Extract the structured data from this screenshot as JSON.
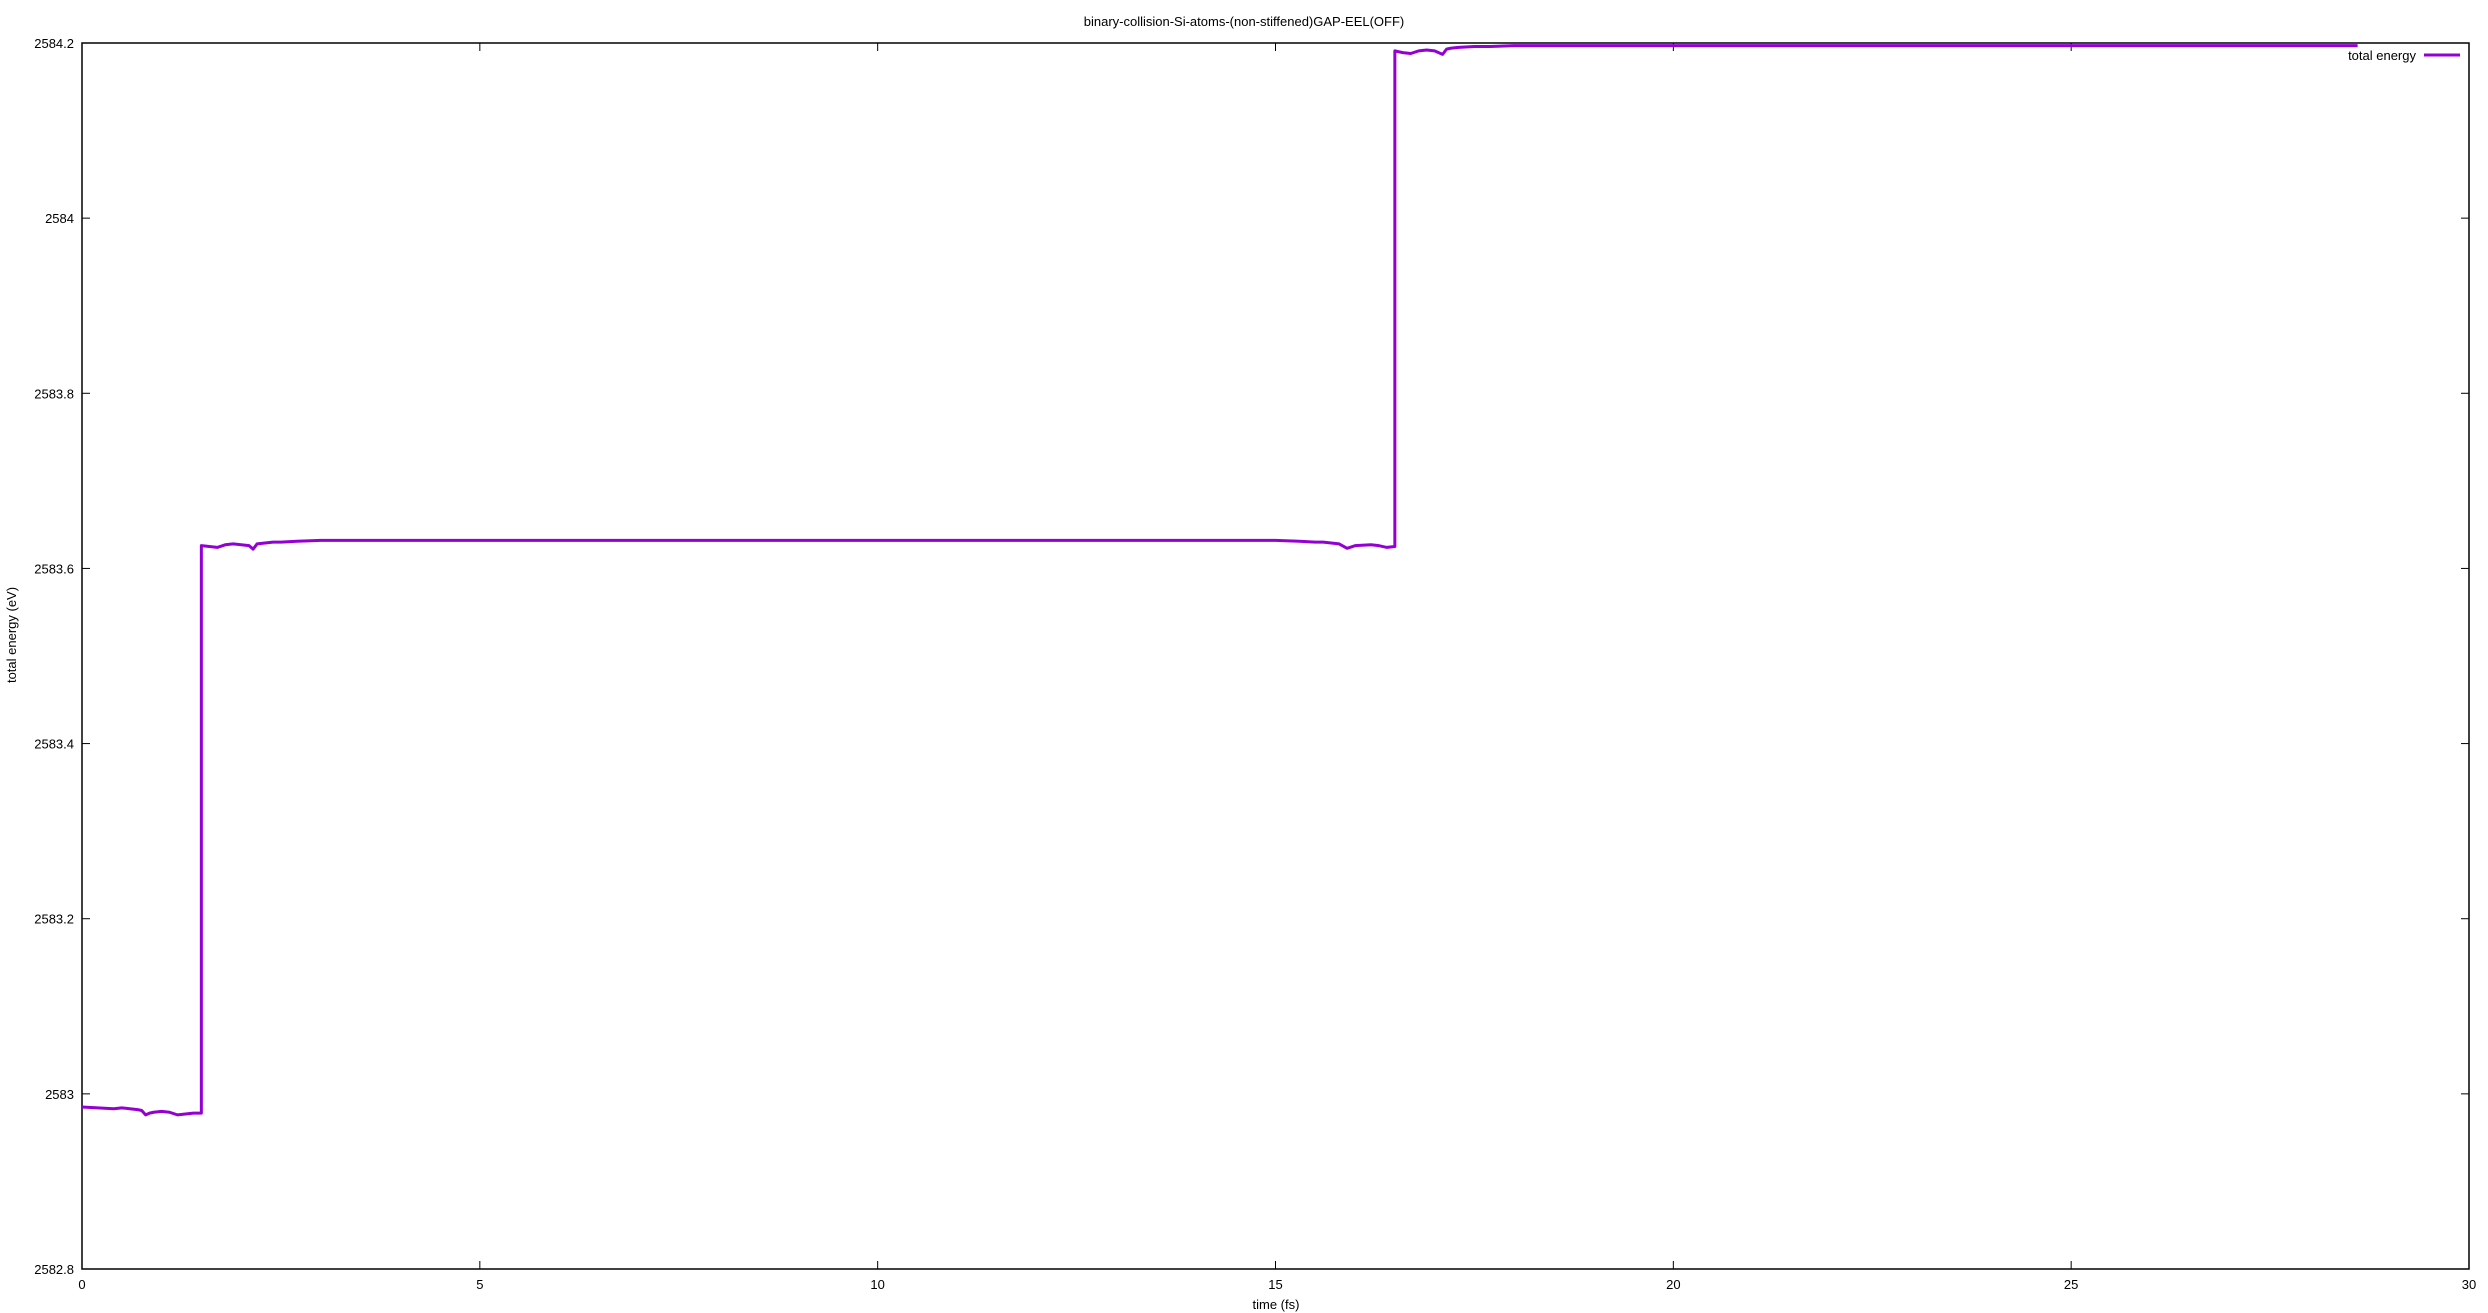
{
  "chart_data": {
    "type": "line",
    "title": "binary-collision-Si-atoms-(non-stiffened)GAP-EEL(OFF)",
    "xlabel": "time (fs)",
    "ylabel": "total energy (eV)",
    "xlim": [
      0,
      30
    ],
    "ylim": [
      2582.8,
      2584.2
    ],
    "x_ticks": [
      0,
      5,
      10,
      15,
      20,
      25,
      30
    ],
    "y_ticks": [
      2582.8,
      2583,
      2583.2,
      2583.4,
      2583.6,
      2583.8,
      2584,
      2584.2
    ],
    "x_tick_labels": [
      "0",
      "5",
      "10",
      "15",
      "20",
      "25",
      "30"
    ],
    "y_tick_labels": [
      "2582.8",
      "2583",
      "2583.2",
      "2583.4",
      "2583.6",
      "2583.8",
      "2584",
      "2584.2"
    ],
    "grid": false,
    "legend_position": "top-right",
    "series": [
      {
        "name": "total energy",
        "color": "#9400D3",
        "x": [
          0,
          0.2,
          0.4,
          0.5,
          0.6,
          0.7,
          0.75,
          0.8,
          0.85,
          0.9,
          1.0,
          1.1,
          1.2,
          1.3,
          1.4,
          1.5,
          1.5,
          1.6,
          1.7,
          1.8,
          1.9,
          2.0,
          2.1,
          2.15,
          2.2,
          2.3,
          2.4,
          2.5,
          2.7,
          3.0,
          3.5,
          5,
          10,
          14.5,
          15.0,
          15.3,
          15.5,
          15.6,
          15.7,
          15.8,
          15.9,
          16.0,
          16.2,
          16.3,
          16.4,
          16.5,
          16.5,
          16.6,
          16.7,
          16.8,
          16.9,
          17.0,
          17.1,
          17.15,
          17.2,
          17.3,
          17.5,
          17.7,
          18.0,
          20,
          25,
          28.6
        ],
        "values": [
          2582.985,
          2582.984,
          2582.983,
          2582.984,
          2582.983,
          2582.982,
          2582.981,
          2582.976,
          2582.978,
          2582.979,
          2582.98,
          2582.979,
          2582.976,
          2582.977,
          2582.978,
          2582.978,
          2583.626,
          2583.625,
          2583.624,
          2583.627,
          2583.628,
          2583.627,
          2583.626,
          2583.622,
          2583.628,
          2583.629,
          2583.63,
          2583.63,
          2583.631,
          2583.632,
          2583.632,
          2583.632,
          2583.632,
          2583.632,
          2583.632,
          2583.631,
          2583.63,
          2583.63,
          2583.629,
          2583.628,
          2583.623,
          2583.626,
          2583.627,
          2583.626,
          2583.624,
          2583.625,
          2584.191,
          2584.189,
          2584.188,
          2584.191,
          2584.192,
          2584.191,
          2584.187,
          2584.193,
          2584.194,
          2584.195,
          2584.196,
          2584.196,
          2584.197,
          2584.197,
          2584.197,
          2584.197
        ]
      }
    ]
  }
}
